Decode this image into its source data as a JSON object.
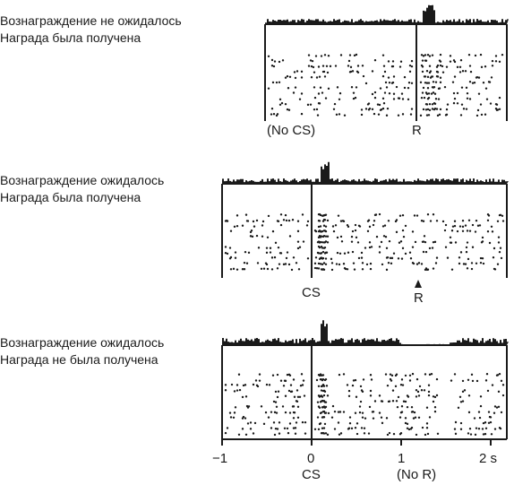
{
  "panels": [
    {
      "id": "p1",
      "line1": "Вознаграждение не ожидалось",
      "line2": "Награда была получена",
      "marker1": "(No CS)",
      "marker2": "R"
    },
    {
      "id": "p2",
      "line1": "Вознаграждение ожидалось",
      "line2": "Награда была получена",
      "marker1": "CS",
      "marker2": "R"
    },
    {
      "id": "p3",
      "line1": "Вознаграждение ожидалось",
      "line2": "Награда не была получена",
      "marker1": "CS",
      "marker2": "(No R)"
    }
  ],
  "axis": {
    "ticks": [
      "−1",
      "0",
      "1",
      "2 s"
    ]
  }
}
